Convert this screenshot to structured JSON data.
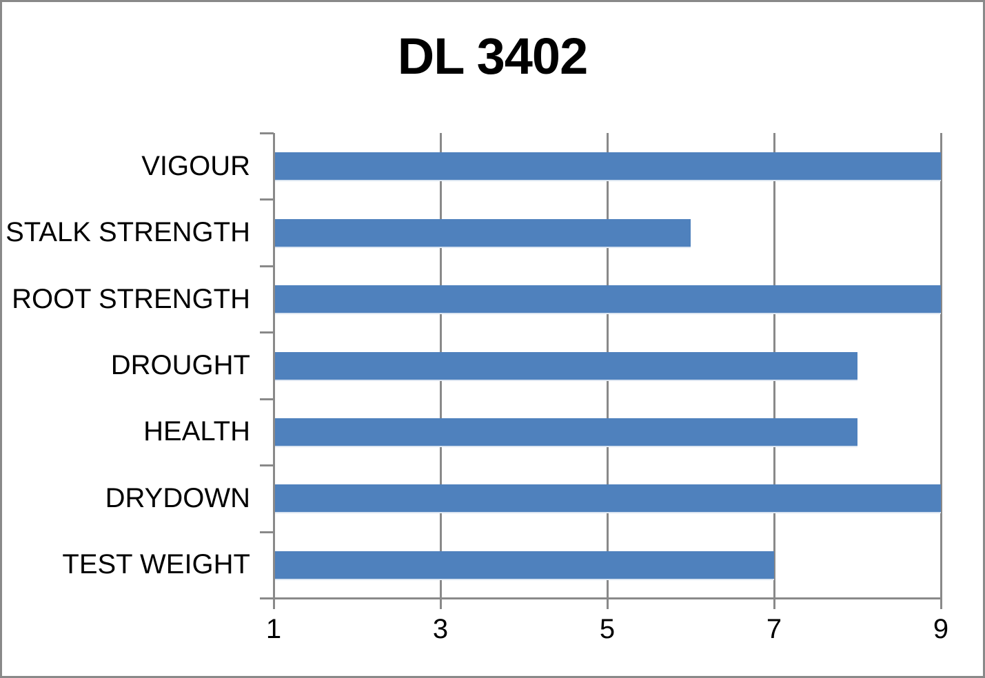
{
  "title": "DL 3402",
  "chart_data": {
    "type": "bar",
    "orientation": "horizontal",
    "title": "DL 3402",
    "xlabel": "",
    "ylabel": "",
    "categories": [
      "VIGOUR",
      "STALK STRENGTH",
      "ROOT STRENGTH",
      "DROUGHT",
      "HEALTH",
      "DRYDOWN",
      "TEST WEIGHT"
    ],
    "values": [
      9,
      6,
      9,
      8,
      8,
      9,
      7
    ],
    "xlim": [
      1,
      9
    ],
    "xticks": [
      1,
      3,
      5,
      7,
      9
    ],
    "grid": true,
    "legend": false,
    "colors": {
      "bar": "#4F81BD",
      "bar_bottom_edge": "#dbe5f1",
      "axis": "#898989",
      "gridline": "#898989",
      "text": "#000000",
      "frame_border": "#898989",
      "background": "#FFFFFF"
    }
  }
}
